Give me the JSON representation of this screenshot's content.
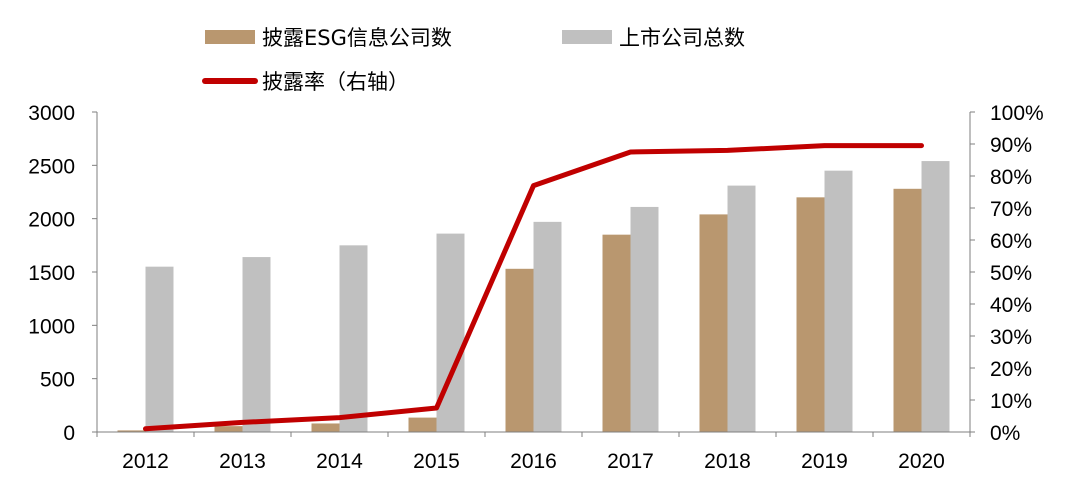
{
  "chart_data": {
    "type": "bar",
    "categories": [
      "2012",
      "2013",
      "2014",
      "2015",
      "2016",
      "2017",
      "2018",
      "2019",
      "2020"
    ],
    "series": [
      {
        "name": "披露ESG信息公司数",
        "kind": "bar",
        "axis": "left",
        "color": "#B9976F",
        "values": [
          15,
          55,
          80,
          135,
          1530,
          1850,
          2040,
          2200,
          2280
        ]
      },
      {
        "name": "上市公司总数",
        "kind": "bar",
        "axis": "left",
        "color": "#C0C0C0",
        "values": [
          1550,
          1640,
          1750,
          1860,
          1970,
          2110,
          2310,
          2450,
          2540
        ]
      },
      {
        "name": "披露率（右轴）",
        "kind": "line",
        "axis": "right",
        "color": "#C00000",
        "values": [
          1,
          3,
          4.5,
          7.5,
          77,
          87.5,
          88,
          89.5,
          89.5
        ]
      }
    ],
    "y_left": {
      "min": 0,
      "max": 3000,
      "ticks": [
        "0",
        "500",
        "1000",
        "1500",
        "2000",
        "2500",
        "3000"
      ]
    },
    "y_right": {
      "min": 0,
      "max": 100,
      "ticks": [
        "0%",
        "10%",
        "20%",
        "30%",
        "40%",
        "50%",
        "60%",
        "70%",
        "80%",
        "90%",
        "100%"
      ]
    },
    "legend_position": "top-center",
    "grid": false
  }
}
